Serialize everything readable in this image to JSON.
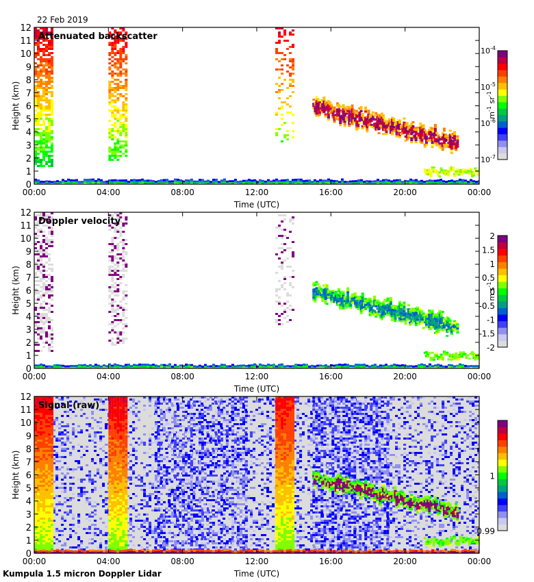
{
  "date_label": "22 Feb 2019",
  "footer": "Kumpula 1.5 micron Doppler Lidar",
  "colors": {
    "scale": [
      "#dcdcdc",
      "#c8c8f0",
      "#9090f0",
      "#4040f8",
      "#0000ff",
      "#0060d0",
      "#00a080",
      "#00c840",
      "#00ff00",
      "#80ff00",
      "#ffff00",
      "#ffc000",
      "#ff8000",
      "#ff4000",
      "#ff0000",
      "#c00040",
      "#800080"
    ],
    "background_grey": "#dcdcdc",
    "frame": "#000000"
  },
  "chart_data": [
    {
      "type": "heatmap",
      "title": "Attenuated backscatter",
      "xlabel": "Time (UTC)",
      "ylabel": "Height (km)",
      "xlim": [
        0,
        24
      ],
      "ylim": [
        0,
        12
      ],
      "xticks": [
        0,
        4,
        8,
        12,
        16,
        20,
        24
      ],
      "xtick_labels": [
        "00:00",
        "04:00",
        "08:00",
        "12:00",
        "16:00",
        "20:00",
        "00:00"
      ],
      "yticks": [
        0,
        1,
        2,
        3,
        4,
        5,
        6,
        7,
        8,
        9,
        10,
        11,
        12
      ],
      "ytick_labels": [
        "0",
        "1",
        "2",
        "3",
        "4",
        "5",
        "6",
        "7",
        "8",
        "9",
        "10",
        "11",
        "12"
      ],
      "colorbar": {
        "label_base": "m",
        "label_exp1": "-1",
        "label_mid": " sr",
        "label_exp2": "-1",
        "scale": "log",
        "range": [
          1e-07,
          0.0001
        ],
        "tick_bases": [
          "10",
          "10",
          "10",
          "10"
        ],
        "tick_exps": [
          "-4",
          "-5",
          "-6",
          "-7"
        ],
        "tick_values": [
          0.0001,
          1e-05,
          1e-06,
          1e-07
        ]
      },
      "background": "white",
      "features": [
        {
          "kind": "column",
          "t0": 0.0,
          "t1": 1.0,
          "z0": 1.4,
          "z1": 12,
          "color_top": 0.92,
          "color_bottom": 0.45,
          "density": 0.75
        },
        {
          "kind": "column",
          "t0": 4.0,
          "t1": 5.0,
          "z0": 1.8,
          "z1": 12,
          "color_top": 0.9,
          "color_bottom": 0.5,
          "density": 0.6
        },
        {
          "kind": "column",
          "t0": 13.0,
          "t1": 14.0,
          "z0": 3.3,
          "z1": 12,
          "color_top": 0.9,
          "color_bottom": 0.55,
          "density": 0.25
        },
        {
          "kind": "band",
          "t0": 15.0,
          "t1": 22.8,
          "z_start": 6.0,
          "z_end": 3.2,
          "thickness": 1.2,
          "color": 0.95,
          "edge": 0.7,
          "density": 0.85
        },
        {
          "kind": "band",
          "t0": 21.0,
          "t1": 24.0,
          "z_start": 1.0,
          "z_end": 1.0,
          "thickness": 0.3,
          "color": 0.98,
          "edge": 0.6,
          "density": 0.9
        },
        {
          "kind": "surface",
          "t0": 0,
          "t1": 24,
          "z_max": 0.4,
          "color": 0.45,
          "density": 1.0
        }
      ]
    },
    {
      "type": "heatmap",
      "title": "Doppler velocity",
      "xlabel": "Time (UTC)",
      "ylabel": "Height (km)",
      "xlim": [
        0,
        24
      ],
      "ylim": [
        0,
        12
      ],
      "xticks": [
        0,
        4,
        8,
        12,
        16,
        20,
        24
      ],
      "xtick_labels": [
        "00:00",
        "04:00",
        "08:00",
        "12:00",
        "16:00",
        "20:00",
        "00:00"
      ],
      "yticks": [
        0,
        1,
        2,
        3,
        4,
        5,
        6,
        7,
        8,
        9,
        10,
        11,
        12
      ],
      "ytick_labels": [
        "0",
        "1",
        "2",
        "3",
        "4",
        "5",
        "6",
        "7",
        "8",
        "9",
        "10",
        "11",
        "12"
      ],
      "colorbar": {
        "label_base": "m s",
        "label_exp1": "-1",
        "scale": "linear",
        "range": [
          -2,
          2
        ],
        "tick_labels": [
          "2",
          "1.5",
          "1",
          "0.5",
          "0",
          "-0.5",
          "-1",
          "-1.5",
          "-2"
        ],
        "tick_values": [
          2,
          1.5,
          1,
          0.5,
          0,
          -0.5,
          -1,
          -1.5,
          -2
        ]
      },
      "background": "white",
      "features": [
        {
          "kind": "column",
          "t0": 0.0,
          "t1": 1.0,
          "z0": 1.4,
          "z1": 12,
          "color_top": 0.0,
          "color_bottom": 0.0,
          "density": 0.55,
          "speckle": 1.0
        },
        {
          "kind": "column",
          "t0": 4.0,
          "t1": 5.0,
          "z0": 1.8,
          "z1": 12,
          "color_top": 0.0,
          "color_bottom": 0.0,
          "density": 0.45,
          "speckle": 1.0
        },
        {
          "kind": "column",
          "t0": 13.0,
          "t1": 14.0,
          "z0": 3.3,
          "z1": 12,
          "color_top": 0.0,
          "color_bottom": 0.0,
          "density": 0.2,
          "speckle": 1.0
        },
        {
          "kind": "band",
          "t0": 15.0,
          "t1": 22.8,
          "z_start": 6.0,
          "z_end": 3.2,
          "thickness": 1.2,
          "color": 0.35,
          "edge": 0.55,
          "density": 0.85
        },
        {
          "kind": "band",
          "t0": 21.0,
          "t1": 24.0,
          "z_start": 1.0,
          "z_end": 1.0,
          "thickness": 0.3,
          "color": 0.48,
          "edge": 0.55,
          "density": 0.9
        },
        {
          "kind": "surface",
          "t0": 0,
          "t1": 24,
          "z_max": 0.35,
          "color": 0.5,
          "density": 1.0
        }
      ]
    },
    {
      "type": "heatmap",
      "title": "Signal (raw)",
      "xlabel": "Time (UTC)",
      "ylabel": "Height (km)",
      "xlim": [
        0,
        24
      ],
      "ylim": [
        0,
        12
      ],
      "xticks": [
        0,
        4,
        8,
        12,
        16,
        20,
        24
      ],
      "xtick_labels": [
        "00:00",
        "04:00",
        "08:00",
        "12:00",
        "16:00",
        "20:00",
        "00:00"
      ],
      "yticks": [
        0,
        1,
        2,
        3,
        4,
        5,
        6,
        7,
        8,
        9,
        10,
        11,
        12
      ],
      "ytick_labels": [
        "0",
        "1",
        "2",
        "3",
        "4",
        "5",
        "6",
        "7",
        "8",
        "9",
        "10",
        "11",
        "12"
      ],
      "colorbar": {
        "scale": "linear",
        "range": [
          0.99,
          1.01
        ],
        "tick_labels": [
          "1",
          "0.99"
        ],
        "tick_values": [
          1,
          0.99
        ]
      },
      "background": "grey",
      "features": [
        {
          "kind": "noise",
          "t0": 1.0,
          "t1": 24,
          "density": 0.35
        },
        {
          "kind": "noise",
          "t0": 6.5,
          "t1": 11.5,
          "density": 0.55
        },
        {
          "kind": "noise",
          "t0": 15.0,
          "t1": 19.0,
          "density": 0.7
        },
        {
          "kind": "column",
          "t0": 0.0,
          "t1": 1.0,
          "z0": 0,
          "z1": 12,
          "color_top": 0.9,
          "color_bottom": 0.55,
          "density": 1.0
        },
        {
          "kind": "column",
          "t0": 4.0,
          "t1": 5.0,
          "z0": 0,
          "z1": 12,
          "color_top": 0.9,
          "color_bottom": 0.55,
          "density": 1.0
        },
        {
          "kind": "column",
          "t0": 13.0,
          "t1": 14.0,
          "z0": 0,
          "z1": 12,
          "color_top": 0.88,
          "color_bottom": 0.55,
          "density": 1.0
        },
        {
          "kind": "band",
          "t0": 15.0,
          "t1": 22.8,
          "z_start": 5.8,
          "z_end": 3.2,
          "thickness": 1.0,
          "color": 1.0,
          "edge": 0.55,
          "density": 0.95
        },
        {
          "kind": "band",
          "t0": 21.0,
          "t1": 24.0,
          "z_start": 1.0,
          "z_end": 1.0,
          "thickness": 0.3,
          "color": 1.0,
          "edge": 0.55,
          "density": 0.95
        },
        {
          "kind": "surface",
          "t0": 0,
          "t1": 24,
          "z_max": 0.3,
          "color": 1.0,
          "density": 1.0
        }
      ]
    }
  ]
}
